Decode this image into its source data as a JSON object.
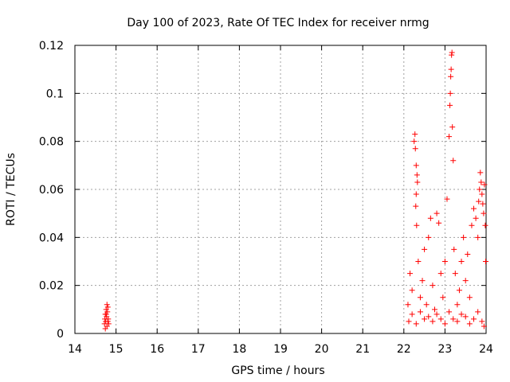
{
  "chart_data": {
    "type": "scatter",
    "title": "Day 100 of 2023, Rate Of TEC Index for receiver nrmg",
    "xlabel": "GPS time / hours",
    "ylabel": "ROTI / TECUs",
    "xlim": [
      14,
      24
    ],
    "ylim": [
      0,
      0.12
    ],
    "x_ticks": [
      14,
      15,
      16,
      17,
      18,
      19,
      20,
      21,
      22,
      23,
      24
    ],
    "x_tick_labels": [
      "14",
      "15",
      "16",
      "17",
      "18",
      "19",
      "20",
      "21",
      "22",
      "23",
      "24"
    ],
    "y_ticks": [
      0,
      0.02,
      0.04,
      0.06,
      0.08,
      0.1,
      0.12
    ],
    "y_tick_labels": [
      "0",
      "0.02",
      "0.04",
      "0.06",
      "0.08",
      "0.1",
      "0.12"
    ],
    "grid": true,
    "marker": "+",
    "color": "#ff0000",
    "series": [
      {
        "name": "ROTI",
        "points": [
          [
            14.72,
            0.004
          ],
          [
            14.73,
            0.006
          ],
          [
            14.74,
            0.008
          ],
          [
            14.75,
            0.005
          ],
          [
            14.76,
            0.01
          ],
          [
            14.77,
            0.007
          ],
          [
            14.78,
            0.003
          ],
          [
            14.79,
            0.009
          ],
          [
            14.8,
            0.011
          ],
          [
            14.81,
            0.006
          ],
          [
            14.82,
            0.004
          ],
          [
            14.74,
            0.002
          ],
          [
            14.78,
            0.012
          ],
          [
            14.8,
            0.005
          ],
          [
            14.76,
            0.008
          ],
          [
            22.1,
            0.012
          ],
          [
            22.15,
            0.025
          ],
          [
            22.2,
            0.018
          ],
          [
            22.25,
            0.08
          ],
          [
            22.27,
            0.083
          ],
          [
            22.28,
            0.077
          ],
          [
            22.3,
            0.07
          ],
          [
            22.32,
            0.066
          ],
          [
            22.33,
            0.063
          ],
          [
            22.3,
            0.058
          ],
          [
            22.29,
            0.053
          ],
          [
            22.31,
            0.045
          ],
          [
            22.35,
            0.03
          ],
          [
            22.4,
            0.015
          ],
          [
            22.45,
            0.022
          ],
          [
            22.5,
            0.035
          ],
          [
            22.55,
            0.012
          ],
          [
            22.6,
            0.04
          ],
          [
            22.65,
            0.048
          ],
          [
            22.7,
            0.02
          ],
          [
            22.75,
            0.01
          ],
          [
            22.8,
            0.05
          ],
          [
            22.85,
            0.046
          ],
          [
            22.9,
            0.025
          ],
          [
            22.95,
            0.015
          ],
          [
            23.0,
            0.03
          ],
          [
            23.05,
            0.056
          ],
          [
            23.1,
            0.082
          ],
          [
            23.12,
            0.095
          ],
          [
            23.13,
            0.1
          ],
          [
            23.14,
            0.107
          ],
          [
            23.15,
            0.11
          ],
          [
            23.16,
            0.116
          ],
          [
            23.17,
            0.117
          ],
          [
            23.18,
            0.086
          ],
          [
            23.2,
            0.072
          ],
          [
            23.22,
            0.035
          ],
          [
            23.25,
            0.025
          ],
          [
            23.3,
            0.012
          ],
          [
            23.35,
            0.018
          ],
          [
            23.4,
            0.03
          ],
          [
            23.45,
            0.04
          ],
          [
            23.5,
            0.022
          ],
          [
            23.55,
            0.033
          ],
          [
            23.6,
            0.015
          ],
          [
            23.65,
            0.045
          ],
          [
            23.7,
            0.052
          ],
          [
            23.75,
            0.048
          ],
          [
            23.8,
            0.04
          ],
          [
            23.82,
            0.055
          ],
          [
            23.84,
            0.06
          ],
          [
            23.86,
            0.067
          ],
          [
            23.88,
            0.063
          ],
          [
            23.9,
            0.058
          ],
          [
            23.92,
            0.054
          ],
          [
            23.94,
            0.05
          ],
          [
            23.96,
            0.062
          ],
          [
            23.98,
            0.045
          ],
          [
            23.99,
            0.03
          ],
          [
            22.12,
            0.005
          ],
          [
            22.2,
            0.008
          ],
          [
            22.3,
            0.004
          ],
          [
            22.4,
            0.009
          ],
          [
            22.5,
            0.006
          ],
          [
            22.6,
            0.007
          ],
          [
            22.7,
            0.005
          ],
          [
            22.8,
            0.008
          ],
          [
            22.9,
            0.006
          ],
          [
            23.0,
            0.004
          ],
          [
            23.1,
            0.009
          ],
          [
            23.2,
            0.006
          ],
          [
            23.3,
            0.005
          ],
          [
            23.4,
            0.008
          ],
          [
            23.5,
            0.007
          ],
          [
            23.6,
            0.004
          ],
          [
            23.7,
            0.006
          ],
          [
            23.8,
            0.009
          ],
          [
            23.9,
            0.005
          ],
          [
            23.95,
            0.003
          ]
        ]
      }
    ]
  }
}
